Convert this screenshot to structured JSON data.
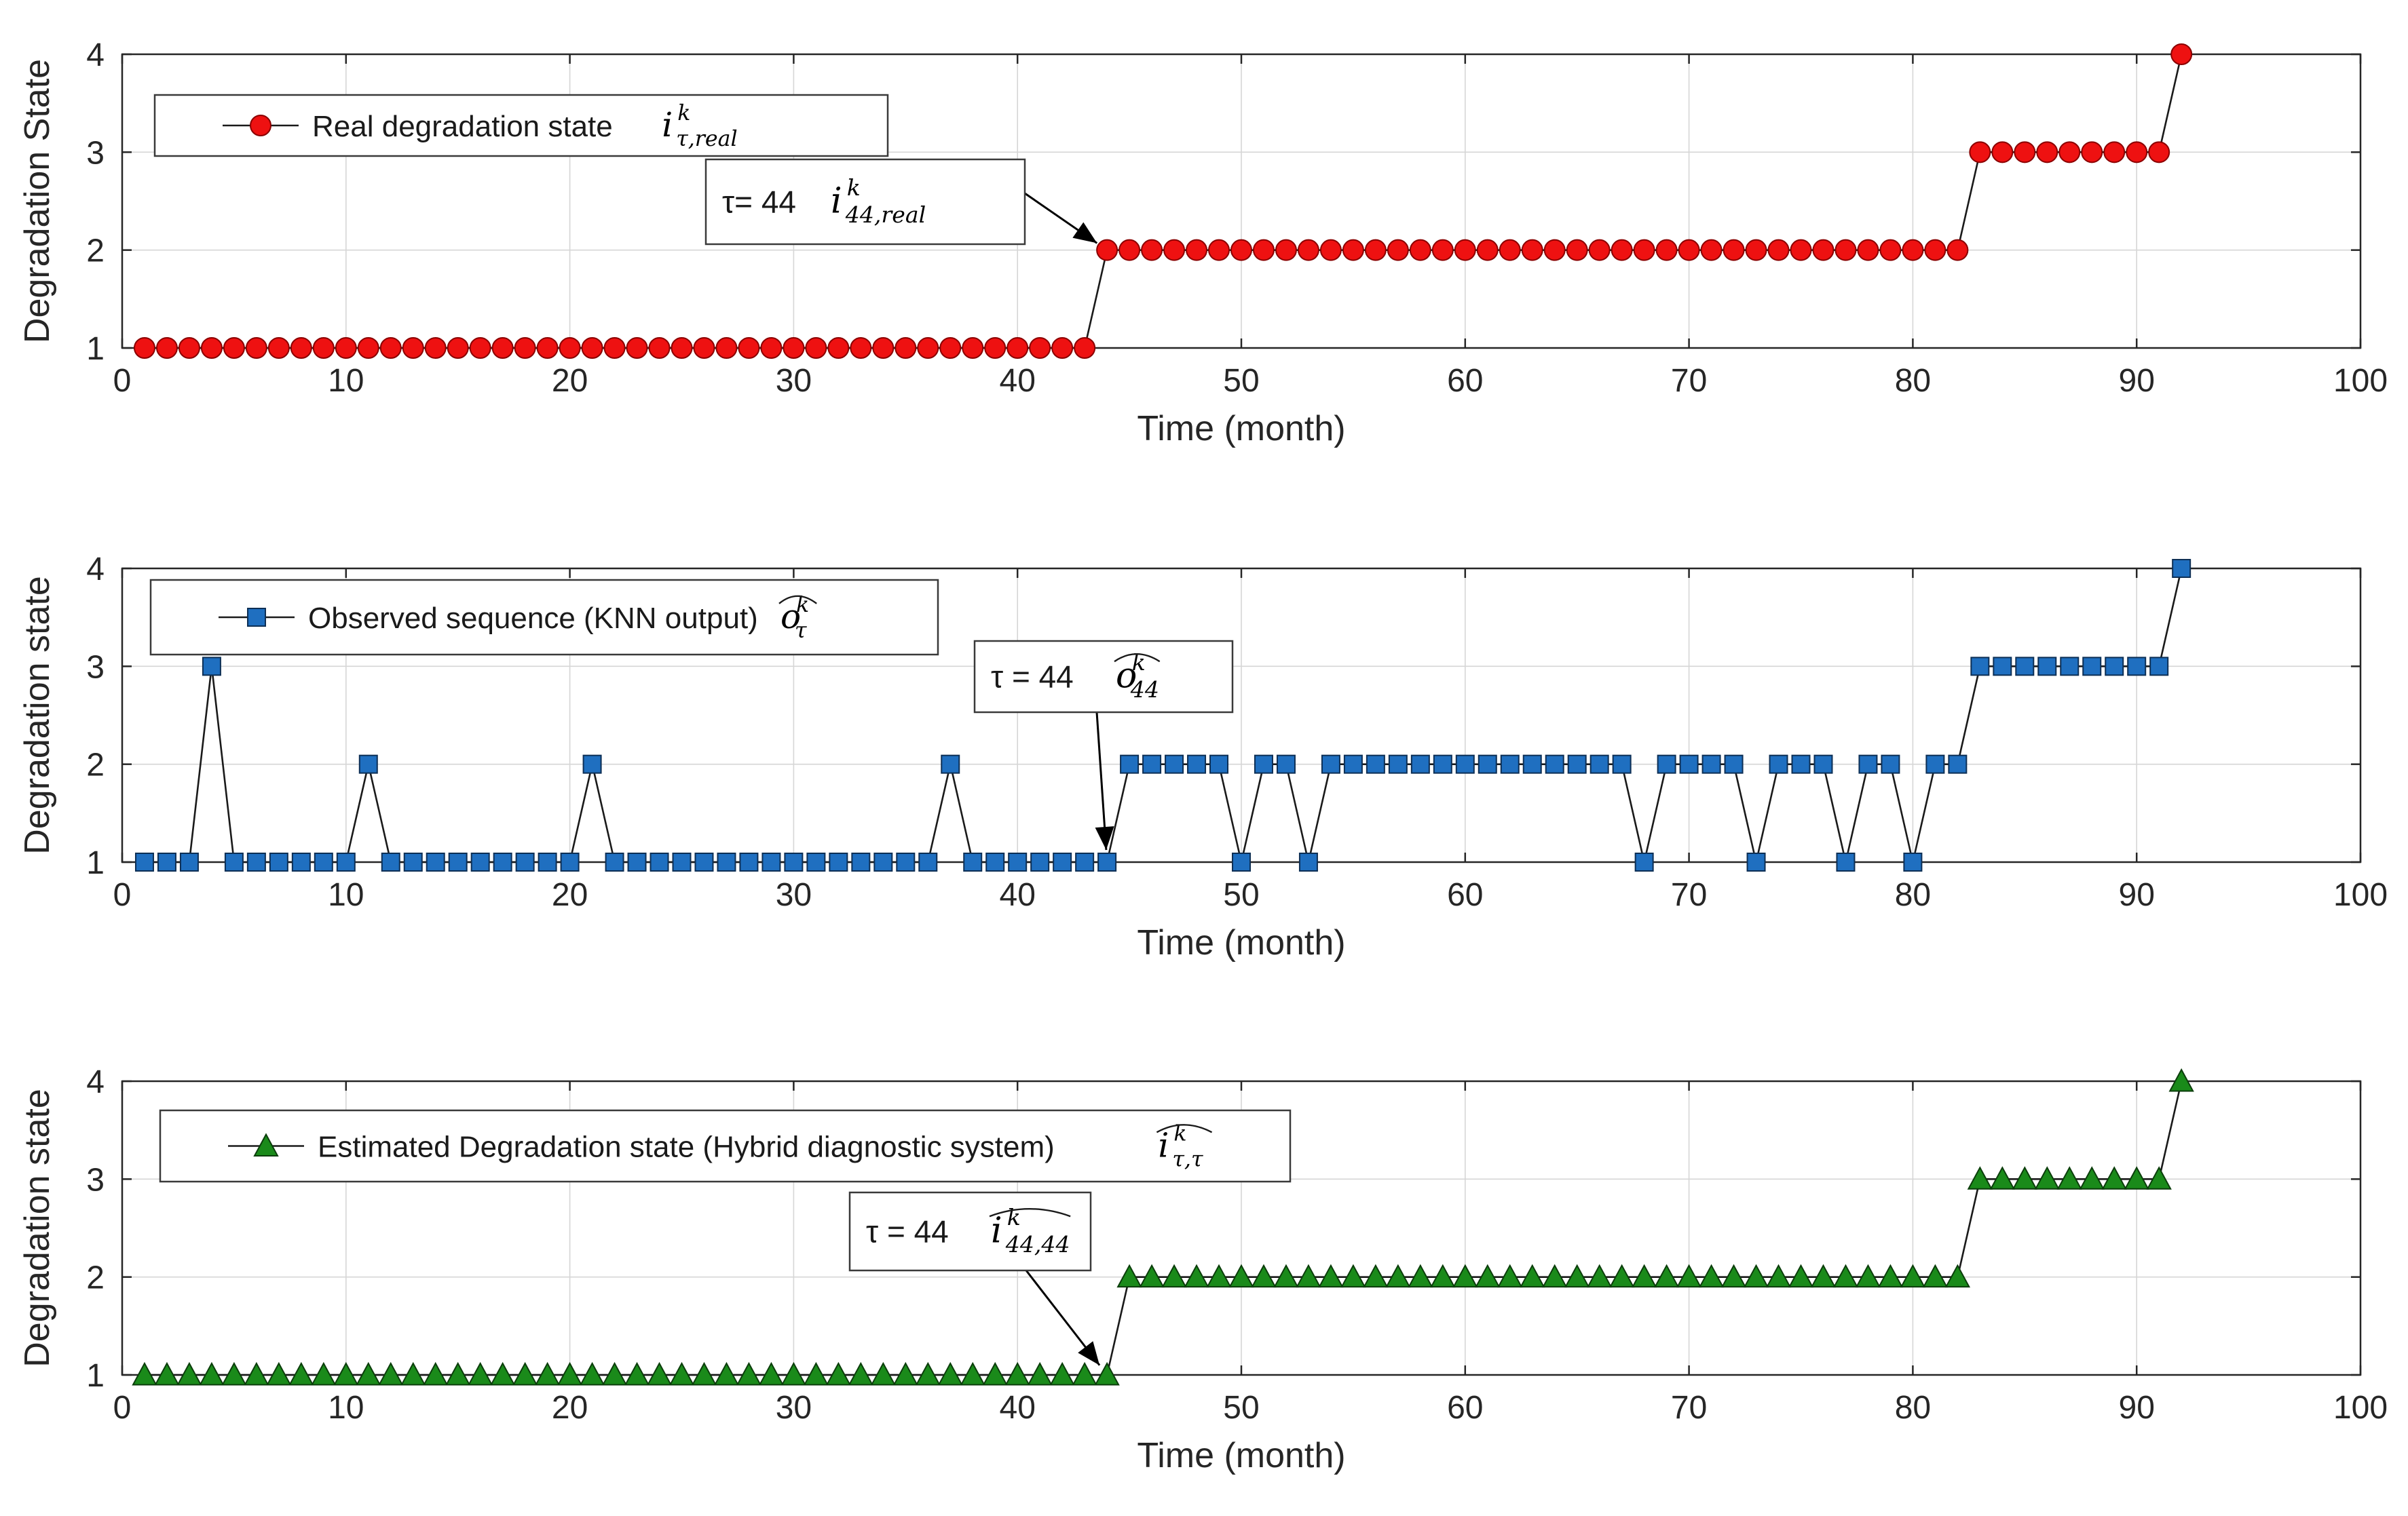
{
  "chart_data": [
    {
      "type": "line",
      "xlabel": "Time (month)",
      "ylabel": "Degradation State",
      "xlim": [
        0,
        100
      ],
      "ylim": [
        1,
        4
      ],
      "xticks": [
        0,
        10,
        20,
        30,
        40,
        50,
        60,
        70,
        80,
        90,
        100
      ],
      "yticks": [
        1,
        2,
        3,
        4
      ],
      "grid": true,
      "legend_placement": "top-left",
      "legend": {
        "label": "Real degradation state",
        "symbol": "i",
        "sup": "k",
        "sub": "τ,real",
        "hat": false
      },
      "annotation": {
        "label": "τ= 44",
        "symbol": "i",
        "sup": "k",
        "sub": "44,real",
        "hat": false,
        "target": [
          44,
          2
        ]
      },
      "series": [
        {
          "name": "Real degradation state",
          "marker": "circle",
          "color": "#ee1111",
          "x": [
            1,
            2,
            3,
            4,
            5,
            6,
            7,
            8,
            9,
            10,
            11,
            12,
            13,
            14,
            15,
            16,
            17,
            18,
            19,
            20,
            21,
            22,
            23,
            24,
            25,
            26,
            27,
            28,
            29,
            30,
            31,
            32,
            33,
            34,
            35,
            36,
            37,
            38,
            39,
            40,
            41,
            42,
            43,
            44,
            45,
            46,
            47,
            48,
            49,
            50,
            51,
            52,
            53,
            54,
            55,
            56,
            57,
            58,
            59,
            60,
            61,
            62,
            63,
            64,
            65,
            66,
            67,
            68,
            69,
            70,
            71,
            72,
            73,
            74,
            75,
            76,
            77,
            78,
            79,
            80,
            81,
            82,
            83,
            84,
            85,
            86,
            87,
            88,
            89,
            90,
            91,
            92
          ],
          "values": [
            1,
            1,
            1,
            1,
            1,
            1,
            1,
            1,
            1,
            1,
            1,
            1,
            1,
            1,
            1,
            1,
            1,
            1,
            1,
            1,
            1,
            1,
            1,
            1,
            1,
            1,
            1,
            1,
            1,
            1,
            1,
            1,
            1,
            1,
            1,
            1,
            1,
            1,
            1,
            1,
            1,
            1,
            1,
            2,
            2,
            2,
            2,
            2,
            2,
            2,
            2,
            2,
            2,
            2,
            2,
            2,
            2,
            2,
            2,
            2,
            2,
            2,
            2,
            2,
            2,
            2,
            2,
            2,
            2,
            2,
            2,
            2,
            2,
            2,
            2,
            2,
            2,
            2,
            2,
            2,
            2,
            2,
            3,
            3,
            3,
            3,
            3,
            3,
            3,
            3,
            3,
            4
          ]
        }
      ]
    },
    {
      "type": "line",
      "xlabel": "Time (month)",
      "ylabel": "Degradation state",
      "xlim": [
        0,
        100
      ],
      "ylim": [
        1,
        4
      ],
      "xticks": [
        0,
        10,
        20,
        30,
        40,
        50,
        60,
        70,
        80,
        90,
        100
      ],
      "yticks": [
        1,
        2,
        3,
        4
      ],
      "grid": true,
      "legend_placement": "top-left",
      "legend": {
        "label": "Observed sequence (KNN output)",
        "symbol": "o",
        "sup": "k",
        "sub": "τ",
        "hat": true
      },
      "annotation": {
        "label": "τ = 44",
        "symbol": "o",
        "sup": "k",
        "sub": "44",
        "hat": true,
        "target": [
          44,
          1
        ]
      },
      "series": [
        {
          "name": "Observed sequence (KNN output)",
          "marker": "square",
          "color": "#1f6fc0",
          "x": [
            1,
            2,
            3,
            4,
            5,
            6,
            7,
            8,
            9,
            10,
            11,
            12,
            13,
            14,
            15,
            16,
            17,
            18,
            19,
            20,
            21,
            22,
            23,
            24,
            25,
            26,
            27,
            28,
            29,
            30,
            31,
            32,
            33,
            34,
            35,
            36,
            37,
            38,
            39,
            40,
            41,
            42,
            43,
            44,
            45,
            46,
            47,
            48,
            49,
            50,
            51,
            52,
            53,
            54,
            55,
            56,
            57,
            58,
            59,
            60,
            61,
            62,
            63,
            64,
            65,
            66,
            67,
            68,
            69,
            70,
            71,
            72,
            73,
            74,
            75,
            76,
            77,
            78,
            79,
            80,
            81,
            82,
            83,
            84,
            85,
            86,
            87,
            88,
            89,
            90,
            91,
            92
          ],
          "values": [
            1,
            1,
            1,
            3,
            1,
            1,
            1,
            1,
            1,
            1,
            2,
            1,
            1,
            1,
            1,
            1,
            1,
            1,
            1,
            1,
            2,
            1,
            1,
            1,
            1,
            1,
            1,
            1,
            1,
            1,
            1,
            1,
            1,
            1,
            1,
            1,
            2,
            1,
            1,
            1,
            1,
            1,
            1,
            1,
            2,
            2,
            2,
            2,
            2,
            1,
            2,
            2,
            1,
            2,
            2,
            2,
            2,
            2,
            2,
            2,
            2,
            2,
            2,
            2,
            2,
            2,
            2,
            1,
            2,
            2,
            2,
            2,
            1,
            2,
            2,
            2,
            1,
            2,
            2,
            1,
            2,
            2,
            3,
            3,
            3,
            3,
            3,
            3,
            3,
            3,
            3,
            4
          ]
        }
      ]
    },
    {
      "type": "line",
      "xlabel": "Time (month)",
      "ylabel": "Degradation state",
      "xlim": [
        0,
        100
      ],
      "ylim": [
        1,
        4
      ],
      "xticks": [
        0,
        10,
        20,
        30,
        40,
        50,
        60,
        70,
        80,
        90,
        100
      ],
      "yticks": [
        1,
        2,
        3,
        4
      ],
      "grid": true,
      "legend_placement": "top-left",
      "legend": {
        "label": "Estimated Degradation state (Hybrid diagnostic system)",
        "symbol": "i",
        "sup": "k",
        "sub": "τ,τ",
        "hat": true
      },
      "annotation": {
        "label": "τ = 44",
        "symbol": "i",
        "sup": "k",
        "sub": "44,44",
        "hat": true,
        "target": [
          44,
          1
        ]
      },
      "series": [
        {
          "name": "Estimated Degradation state (Hybrid diagnostic system)",
          "marker": "triangle",
          "color": "#1a8a1a",
          "x": [
            1,
            2,
            3,
            4,
            5,
            6,
            7,
            8,
            9,
            10,
            11,
            12,
            13,
            14,
            15,
            16,
            17,
            18,
            19,
            20,
            21,
            22,
            23,
            24,
            25,
            26,
            27,
            28,
            29,
            30,
            31,
            32,
            33,
            34,
            35,
            36,
            37,
            38,
            39,
            40,
            41,
            42,
            43,
            44,
            45,
            46,
            47,
            48,
            49,
            50,
            51,
            52,
            53,
            54,
            55,
            56,
            57,
            58,
            59,
            60,
            61,
            62,
            63,
            64,
            65,
            66,
            67,
            68,
            69,
            70,
            71,
            72,
            73,
            74,
            75,
            76,
            77,
            78,
            79,
            80,
            81,
            82,
            83,
            84,
            85,
            86,
            87,
            88,
            89,
            90,
            91,
            92
          ],
          "values": [
            1,
            1,
            1,
            1,
            1,
            1,
            1,
            1,
            1,
            1,
            1,
            1,
            1,
            1,
            1,
            1,
            1,
            1,
            1,
            1,
            1,
            1,
            1,
            1,
            1,
            1,
            1,
            1,
            1,
            1,
            1,
            1,
            1,
            1,
            1,
            1,
            1,
            1,
            1,
            1,
            1,
            1,
            1,
            1,
            2,
            2,
            2,
            2,
            2,
            2,
            2,
            2,
            2,
            2,
            2,
            2,
            2,
            2,
            2,
            2,
            2,
            2,
            2,
            2,
            2,
            2,
            2,
            2,
            2,
            2,
            2,
            2,
            2,
            2,
            2,
            2,
            2,
            2,
            2,
            2,
            2,
            2,
            3,
            3,
            3,
            3,
            3,
            3,
            3,
            3,
            3,
            4
          ]
        }
      ]
    }
  ]
}
